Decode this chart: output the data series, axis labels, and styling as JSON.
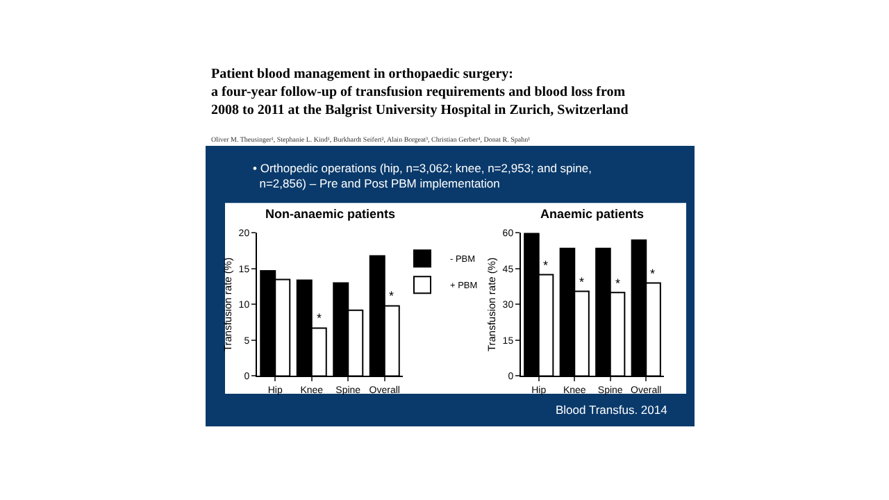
{
  "chart_data": [
    {
      "type": "bar",
      "title": "Non-anaemic patients",
      "ylabel": "Transfusion rate (%)",
      "categories": [
        "Hip",
        "Knee",
        "Spine",
        "Overall"
      ],
      "series": [
        {
          "name": "- PBM",
          "color": "#000000",
          "values": [
            14.7,
            13.4,
            13.0,
            16.8
          ]
        },
        {
          "name": "+ PBM",
          "color": "#ffffff",
          "values": [
            13.5,
            6.7,
            9.2,
            9.8
          ]
        }
      ],
      "ylim": [
        0,
        20
      ],
      "yticks": [
        0,
        5,
        10,
        15,
        20
      ],
      "legend": "top right",
      "annotations": [
        "Patient blood management in orthopaedic surgery:\na four-year follow-up of transfusion requirements and blood loss from\n2008 to 2011 at the Balgrist University Hospital in Zurich, Switzerland",
        "Oliver M. Theusinger¹, Stephanie L. Kind¹, Burkhardt Seifert², Alain Borgeat³, Christian Gerber⁴, Donat R. Spahn¹",
        "• Orthopedic operations (hip, n=3,062; knee, n=2,953; and spine,\n  n=2,856) – Pre and Post PBM implementation",
        {
          "text": "*",
          "x": "Knee",
          "y": 6.7
        },
        {
          "text": "*",
          "x": "Overall",
          "y": 9.8
        }
      ]
    },
    {
      "type": "bar",
      "title": "Anaemic patients",
      "ylabel": "Transfusion rate (%)",
      "categories": [
        "Hip",
        "Knee",
        "Spine",
        "Overall"
      ],
      "series": [
        {
          "color": "#000000",
          "values": [
            60,
            53.5,
            53.5,
            57
          ]
        },
        {
          "color": "#ffffff",
          "values": [
            42.5,
            35.5,
            35,
            39
          ]
        }
      ],
      "ylim": [
        0,
        60
      ],
      "yticks": [
        0,
        15,
        30,
        45,
        60
      ],
      "annotations": [
        {
          "text": "*",
          "x": "Hip",
          "y": 42.5
        },
        {
          "text": "*",
          "x": "Knee",
          "y": 35.5
        },
        {
          "text": "*",
          "x": "Spine",
          "y": 35
        },
        {
          "text": "*",
          "x": "Overall",
          "y": 39
        },
        "Blood Transfus. 2014"
      ]
    }
  ]
}
